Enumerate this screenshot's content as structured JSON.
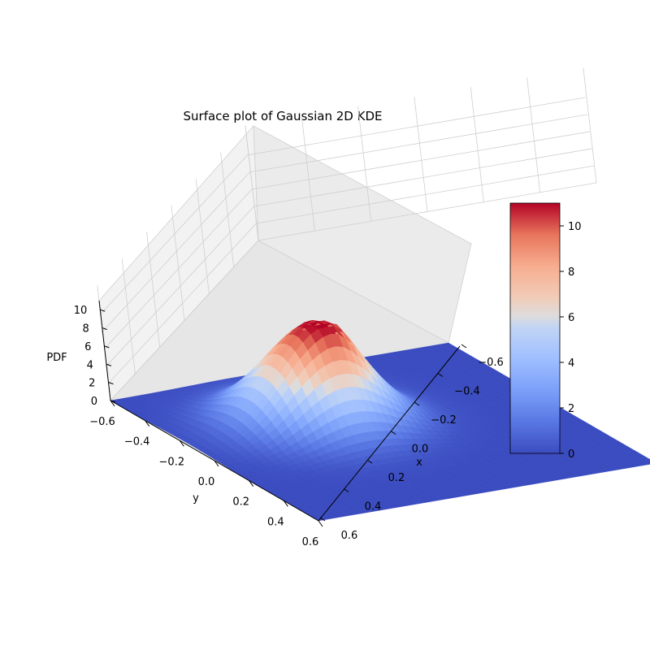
{
  "chart_data": {
    "type": "surface",
    "title": "Surface plot of Gaussian 2D KDE",
    "xlabel": "x",
    "ylabel": "y",
    "zlabel": "PDF",
    "colormap": "coolwarm",
    "xlim": [
      -0.6,
      0.6
    ],
    "ylim": [
      -0.6,
      0.6
    ],
    "zlim": [
      0,
      11
    ],
    "x_ticks": [
      "−0.6",
      "−0.4",
      "−0.2",
      "0.0",
      "0.2",
      "0.4",
      "0.6"
    ],
    "y_ticks": [
      "−0.6",
      "−0.4",
      "−0.2",
      "0.0",
      "0.2",
      "0.4",
      "0.6"
    ],
    "z_ticks": [
      "0",
      "2",
      "4",
      "6",
      "8",
      "10"
    ],
    "colorbar_ticks": [
      "0",
      "2",
      "4",
      "6",
      "8",
      "10"
    ],
    "colorbar_range": [
      0,
      11
    ],
    "peak": {
      "x": -0.15,
      "y": -0.15,
      "z": 11
    },
    "spread": 0.16,
    "grid": true
  }
}
